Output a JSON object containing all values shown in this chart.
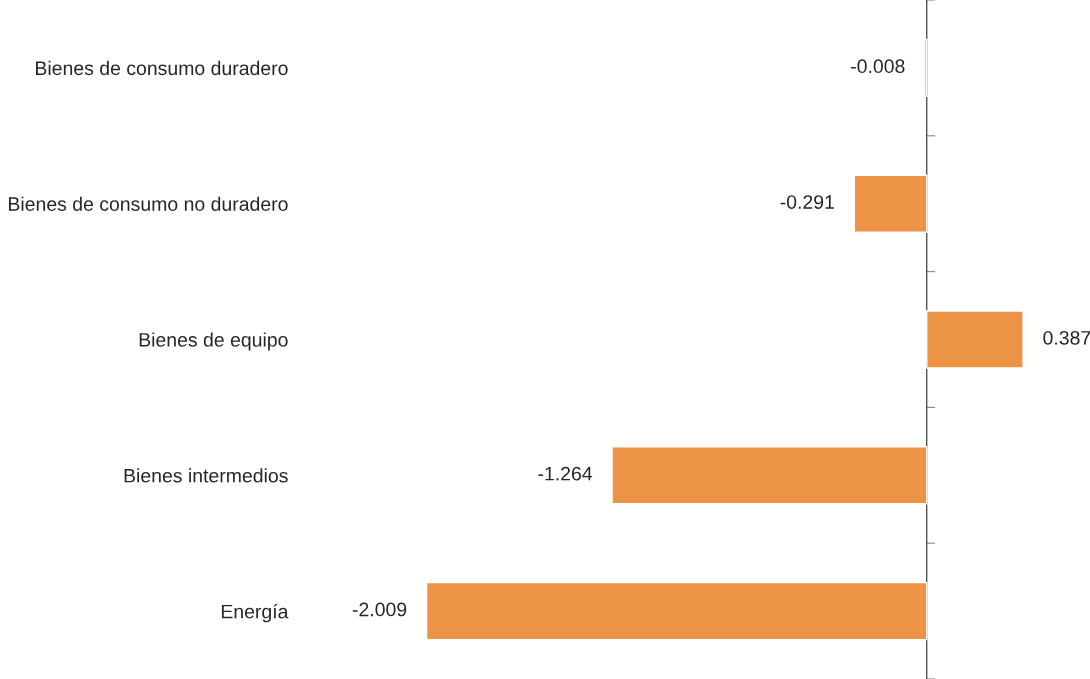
{
  "chart_data": {
    "type": "bar",
    "orientation": "horizontal",
    "categories": [
      "Bienes de consumo duradero",
      "Bienes de consumo no duradero",
      "Bienes de equipo",
      "Bienes intermedios",
      "Energía"
    ],
    "values": [
      -0.008,
      -0.291,
      0.387,
      -1.264,
      -2.009
    ],
    "color": "#ed9346",
    "data_labels": true,
    "grid": false,
    "legend": false
  }
}
